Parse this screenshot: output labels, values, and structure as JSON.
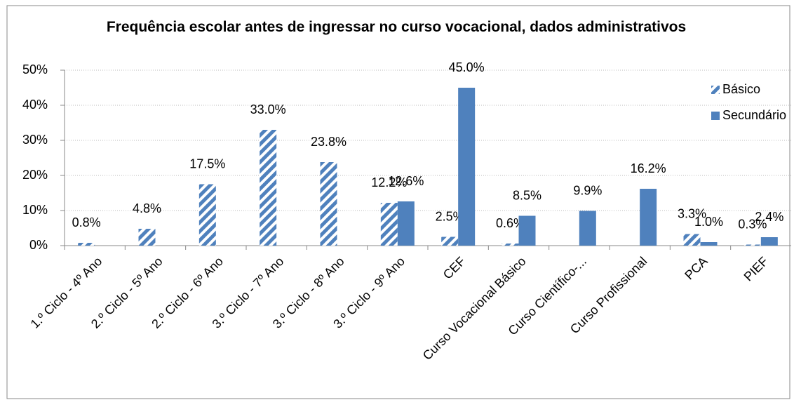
{
  "chart_data": {
    "type": "bar",
    "title": "Frequência escolar antes de ingressar no curso vocacional, dados administrativos",
    "categories": [
      "1.º Ciclo - 4º Ano",
      "2.º Ciclo - 5º Ano",
      "2.º Ciclo - 6º Ano",
      "3.º Ciclo - 7º Ano",
      "3.º Ciclo - 8º Ano",
      "3.º Ciclo - 9º Ano",
      "CEF",
      "Curso Vocacional Básico",
      "Curso Científico-...",
      "Curso Profissional",
      "PCA",
      "PIEF"
    ],
    "series": [
      {
        "name": "Básico",
        "color": "#4f81bd",
        "pattern": "hatch",
        "values": [
          0.8,
          4.8,
          17.5,
          33.0,
          23.8,
          12.2,
          2.5,
          0.6,
          null,
          null,
          3.3,
          0.3
        ],
        "value_labels": [
          "0.8%",
          "4.8%",
          "17.5%",
          "33.0%",
          "23.8%",
          "12.2%",
          "2.5%",
          "0.6%",
          null,
          null,
          "3.3%",
          "0.3%"
        ]
      },
      {
        "name": "Secundário",
        "color": "#4f81bd",
        "pattern": "solid",
        "values": [
          null,
          null,
          null,
          null,
          null,
          12.6,
          45.0,
          8.5,
          9.9,
          16.2,
          1.0,
          2.4
        ],
        "value_labels": [
          null,
          null,
          null,
          null,
          null,
          "12.6%",
          "45.0%",
          "8.5%",
          "9.9%",
          "16.2%",
          "1.0%",
          "2.4%"
        ]
      }
    ],
    "ylim": [
      0,
      50
    ],
    "yticks": [
      {
        "value": 0,
        "label": "0%"
      },
      {
        "value": 10,
        "label": "10%"
      },
      {
        "value": 20,
        "label": "20%"
      },
      {
        "value": 30,
        "label": "30%"
      },
      {
        "value": 40,
        "label": "40%"
      },
      {
        "value": 50,
        "label": "50%"
      }
    ],
    "grid": true,
    "legend": "top-right"
  }
}
